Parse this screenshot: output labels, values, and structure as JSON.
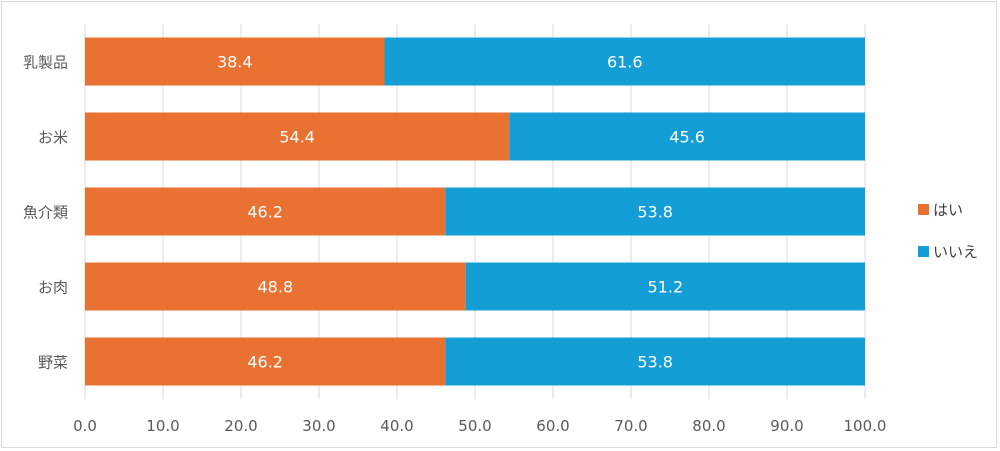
{
  "chart_data": {
    "type": "bar",
    "orientation": "horizontal",
    "stacked": true,
    "categories": [
      "乳製品",
      "お米",
      "魚介類",
      "お肉",
      "野菜"
    ],
    "series": [
      {
        "name": "はい",
        "color": "#E97132",
        "values": [
          38.4,
          54.4,
          46.2,
          48.8,
          46.2
        ]
      },
      {
        "name": "いいえ",
        "color": "#149ED6",
        "values": [
          61.6,
          45.6,
          53.8,
          51.2,
          53.8
        ]
      }
    ],
    "xlim": [
      0,
      100
    ],
    "x_ticks": [
      "0.0",
      "10.0",
      "20.0",
      "30.0",
      "40.0",
      "50.0",
      "60.0",
      "70.0",
      "80.0",
      "90.0",
      "100.0"
    ],
    "data_labels": true,
    "grid": "vertical",
    "legend_position": "right",
    "title": "",
    "xlabel": "",
    "ylabel": ""
  }
}
